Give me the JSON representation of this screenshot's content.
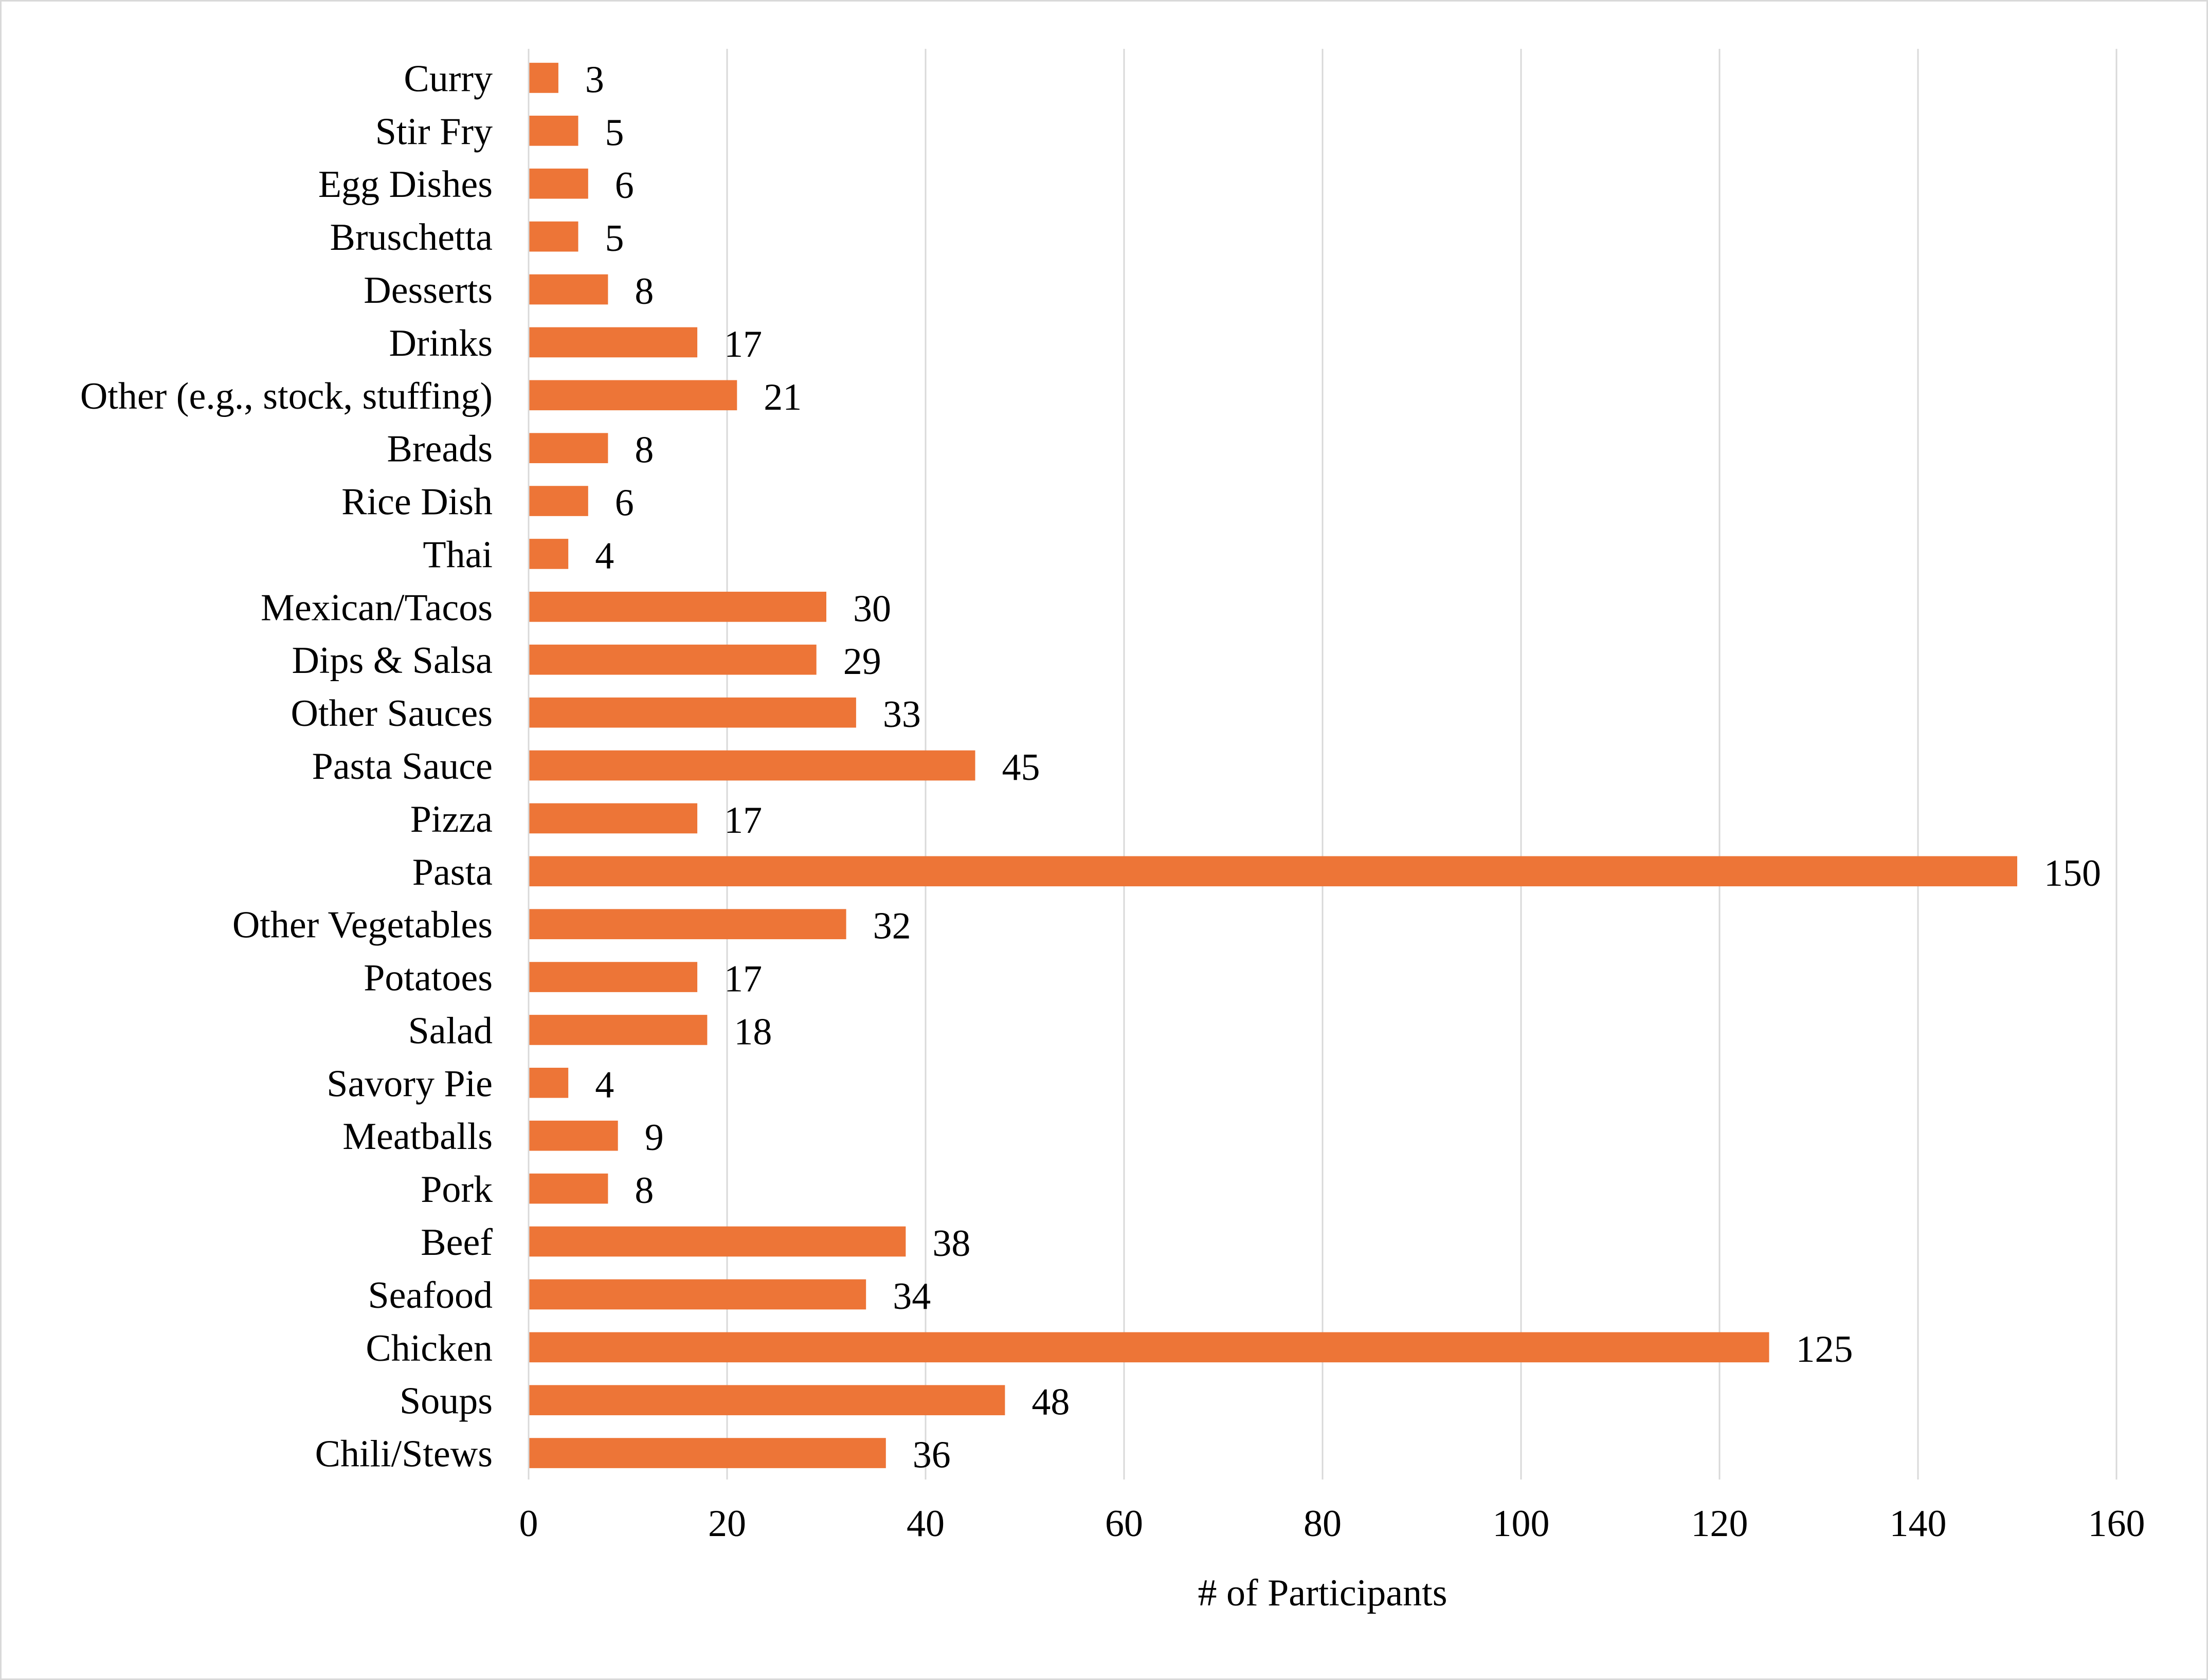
{
  "chart_data": {
    "type": "bar",
    "orientation": "horizontal",
    "title": "",
    "xlabel": "# of Participants",
    "ylabel": "",
    "xlim": [
      0,
      160
    ],
    "x_ticks": [
      0,
      20,
      40,
      60,
      80,
      100,
      120,
      140,
      160
    ],
    "grid": "vertical",
    "legend": "none",
    "bar_color": "#ed7537",
    "categories": [
      "Curry",
      "Stir Fry",
      "Egg Dishes",
      "Bruschetta",
      "Desserts",
      "Drinks",
      "Other (e.g., stock, stuffing)",
      "Breads",
      "Rice Dish",
      "Thai",
      "Mexican/Tacos",
      "Dips & Salsa",
      "Other Sauces",
      "Pasta Sauce",
      "Pizza",
      "Pasta",
      "Other Vegetables",
      "Potatoes",
      "Salad",
      "Savory Pie",
      "Meatballs",
      "Pork",
      "Beef",
      "Seafood",
      "Chicken",
      "Soups",
      "Chili/Stews"
    ],
    "values": [
      3,
      5,
      6,
      5,
      8,
      17,
      21,
      8,
      6,
      4,
      30,
      29,
      33,
      45,
      17,
      150,
      32,
      17,
      18,
      4,
      9,
      8,
      38,
      34,
      125,
      48,
      36
    ]
  }
}
